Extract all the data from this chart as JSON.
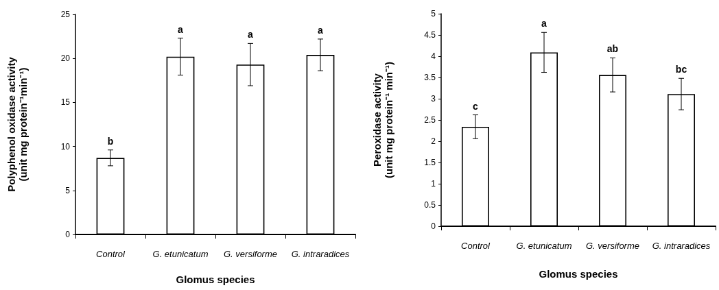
{
  "chart_data": [
    {
      "type": "bar",
      "categories": [
        "Control",
        "G. etunicatum",
        "G. versiforme",
        "G. intraradices"
      ],
      "xlabel": "Glomus species",
      "ylabel": "Polyphenol oxidase activity\n(unit mg protein⁻¹min⁻¹)",
      "values": [
        8.7,
        20.2,
        19.3,
        20.4
      ],
      "errors": [
        0.9,
        2.1,
        2.4,
        1.8
      ],
      "color": "#ffffff",
      "ylim": [
        0,
        25
      ],
      "yticks": [
        0,
        5,
        10,
        15,
        20,
        25
      ],
      "annotations": [
        {
          "text": "b",
          "x": "Control",
          "y": 9.6
        },
        {
          "text": "a",
          "x": "G. etunicatum",
          "y": 22.3
        },
        {
          "text": "a",
          "x": "G. versiforme",
          "y": 21.7
        },
        {
          "text": "a",
          "x": "G. intraradices",
          "y": 22.2
        }
      ]
    },
    {
      "type": "bar",
      "categories": [
        "Control",
        "G. etunicatum",
        "G. versiforme",
        "G. intraradices"
      ],
      "xlabel": "Glomus species",
      "ylabel": "Peroxidase activity\n(unit mg protein⁻¹ min⁻¹)",
      "values": [
        2.34,
        4.09,
        3.56,
        3.11
      ],
      "errors": [
        0.28,
        0.47,
        0.4,
        0.37
      ],
      "color": "#ffffff",
      "ylim": [
        0,
        5
      ],
      "yticks": [
        0,
        0.5,
        1,
        1.5,
        2,
        2.5,
        3,
        3.5,
        4,
        4.5,
        5
      ],
      "annotations": [
        {
          "text": "c",
          "x": "Control",
          "y": 2.62
        },
        {
          "text": "a",
          "x": "G. etunicatum",
          "y": 4.56
        },
        {
          "text": "ab",
          "x": "G. versiforme",
          "y": 3.96
        },
        {
          "text": "bc",
          "x": "G. intraradices",
          "y": 3.48
        }
      ]
    }
  ]
}
